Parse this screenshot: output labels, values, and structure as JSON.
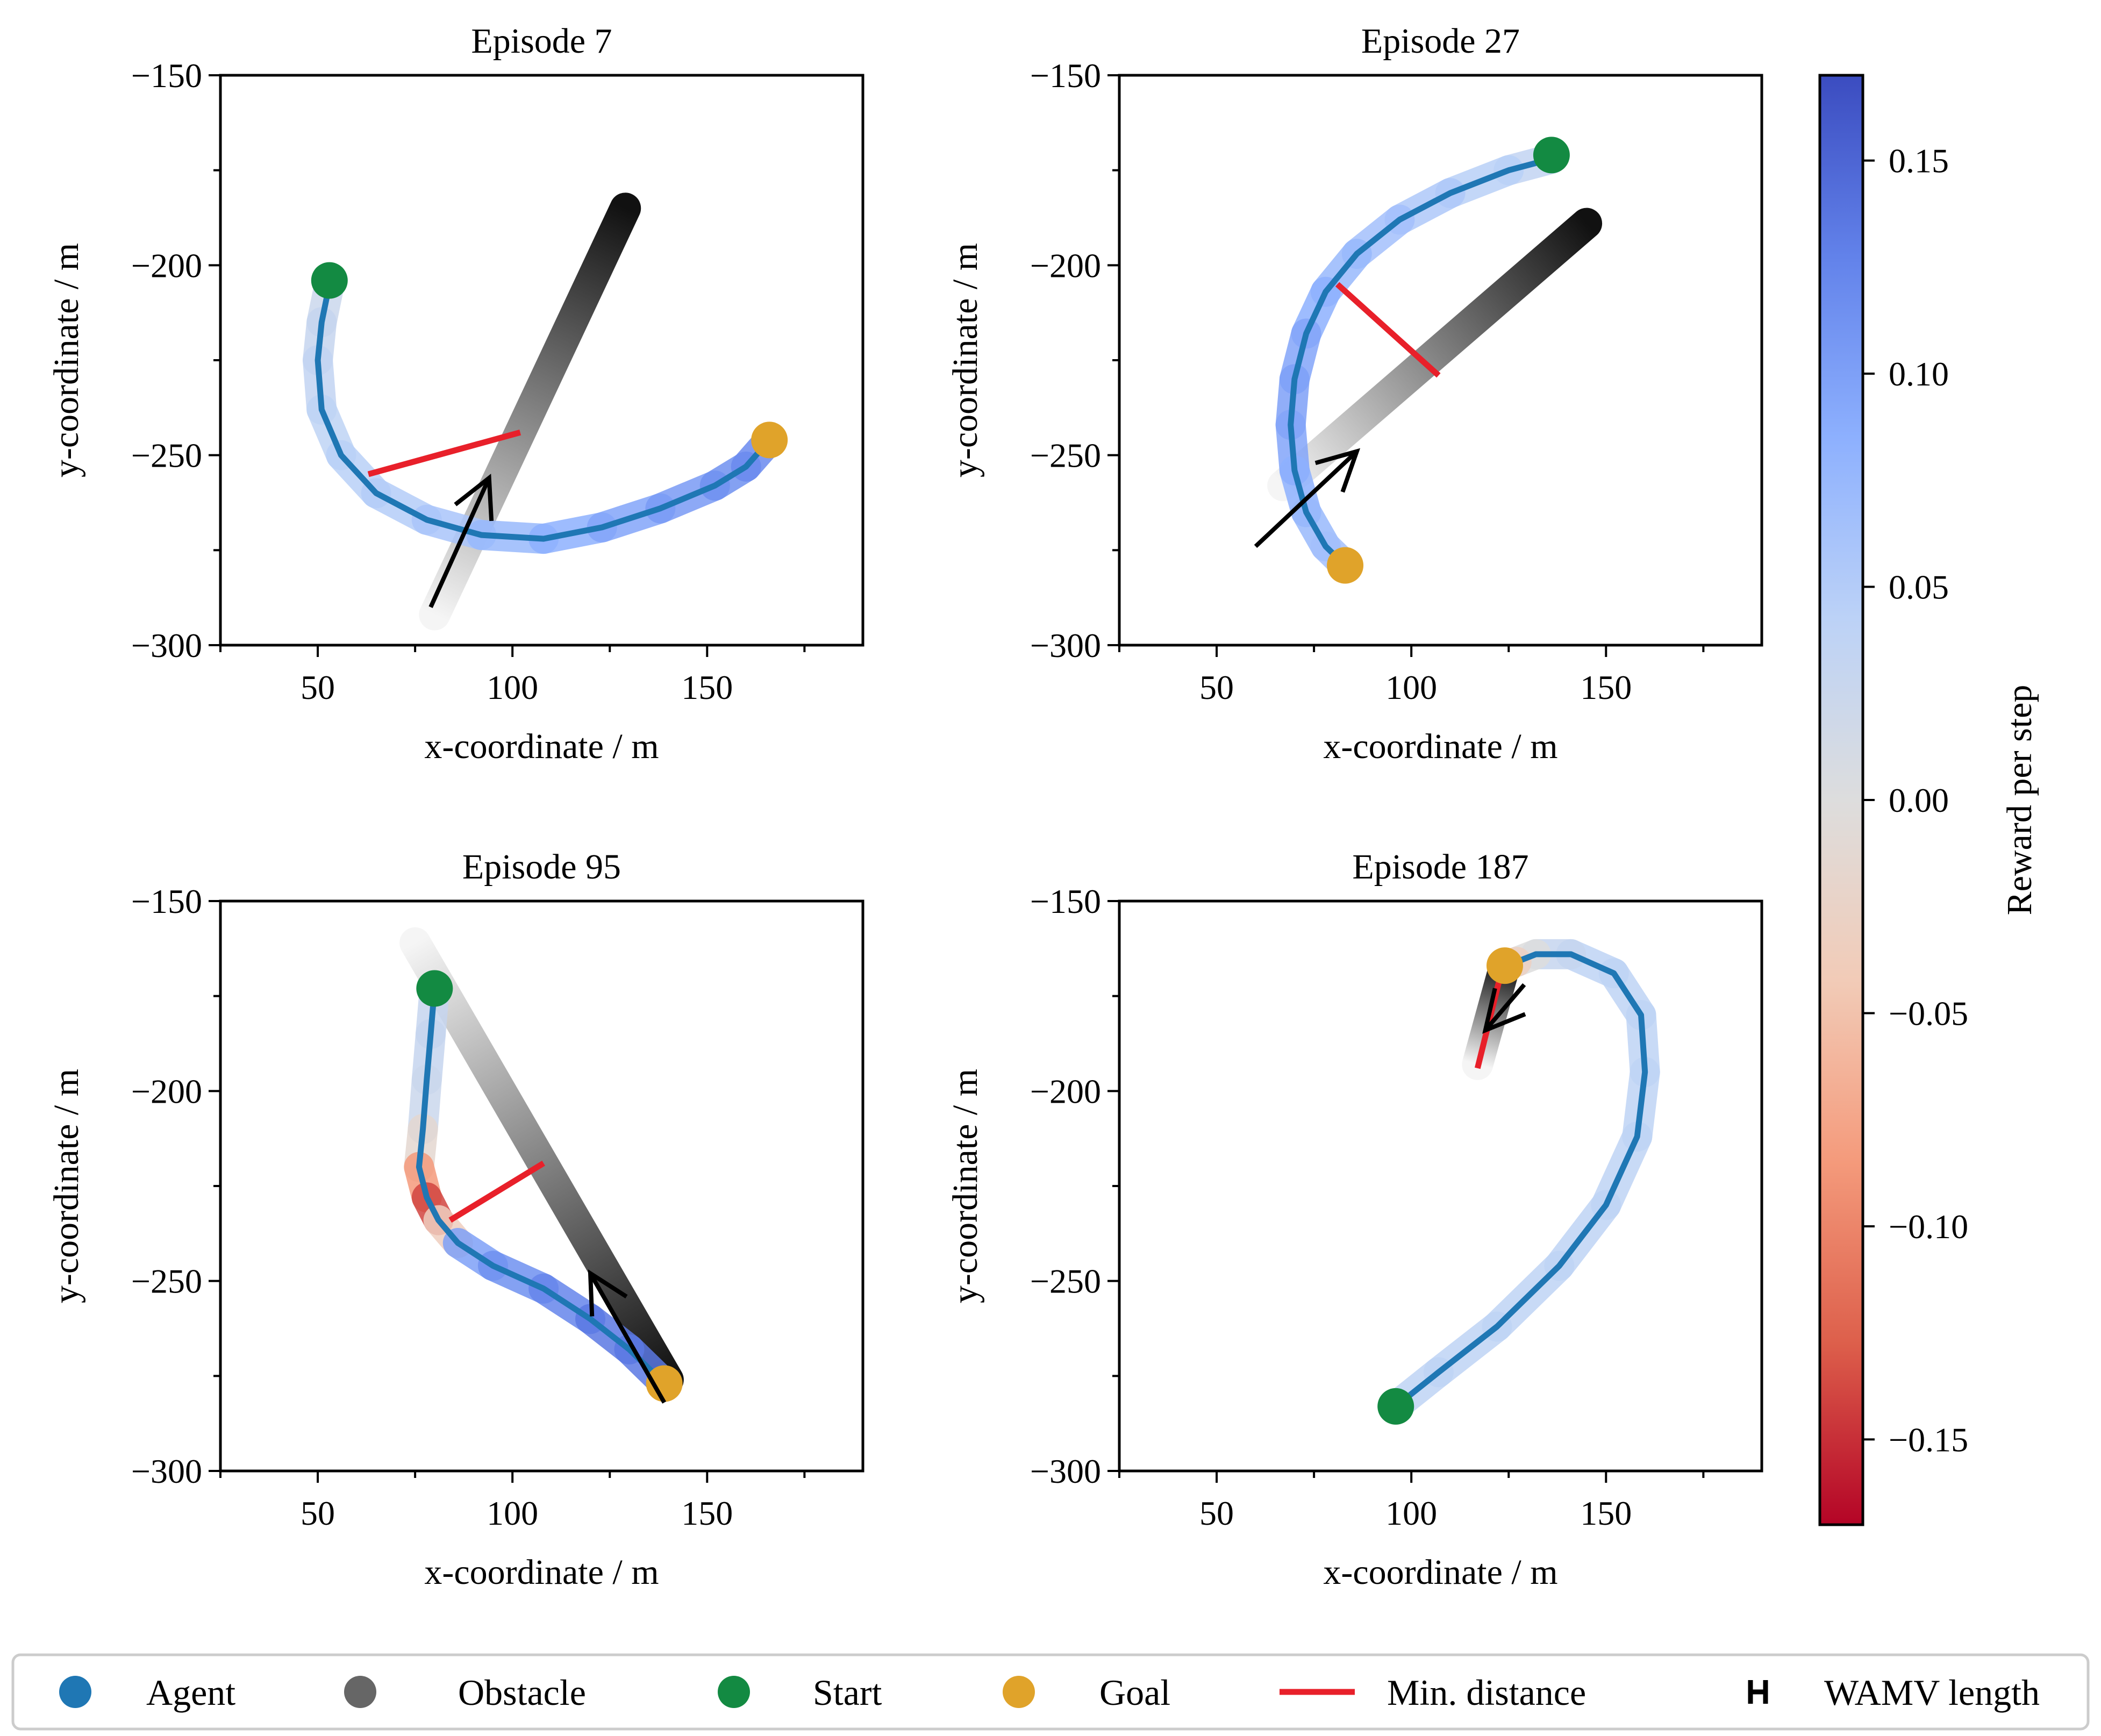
{
  "chart_data": {
    "type": "line",
    "description_axes": {
      "xlabel": "x-coordinate / m",
      "ylabel": "y-coordinate / m",
      "xlim": [
        25,
        190
      ],
      "ylim": [
        -300,
        -150
      ],
      "xticks": [
        50,
        100,
        150
      ],
      "yticks": [
        -150,
        -200,
        -250,
        -300
      ]
    },
    "colorbar": {
      "label": "Reward per step",
      "range": [
        -0.17,
        0.17
      ],
      "ticks": [
        0.15,
        0.1,
        0.05,
        0.0,
        -0.05,
        -0.1,
        -0.15
      ],
      "tick_labels": [
        "0.15",
        "0.10",
        "0.05",
        "0.00",
        "−0.05",
        "−0.10",
        "−0.15"
      ],
      "colormap": [
        "#b40426",
        "#dd5f4b",
        "#f49a7b",
        "#f2cbb7",
        "#dddddd",
        "#bcd2f7",
        "#8db0fe",
        "#6282ea",
        "#3b4cc0"
      ]
    },
    "panels": [
      {
        "title": "Episode 7",
        "start": [
          53,
          -204
        ],
        "goal": [
          166,
          -246
        ],
        "obstacle": {
          "from": [
            80,
            -292
          ],
          "to": [
            129,
            -185
          ]
        },
        "min_distance": {
          "from": [
            63,
            -255
          ],
          "to": [
            102,
            -244
          ]
        },
        "arrow": {
          "from": [
            79,
            -290
          ],
          "to": [
            94,
            -256
          ]
        },
        "path": [
          {
            "x": 53,
            "y": -205,
            "r": 0.02
          },
          {
            "x": 51,
            "y": -215,
            "r": 0.03
          },
          {
            "x": 50,
            "y": -225,
            "r": 0.03
          },
          {
            "x": 51,
            "y": -238,
            "r": 0.04
          },
          {
            "x": 56,
            "y": -250,
            "r": 0.04
          },
          {
            "x": 65,
            "y": -260,
            "r": 0.05
          },
          {
            "x": 78,
            "y": -267,
            "r": 0.05
          },
          {
            "x": 92,
            "y": -271,
            "r": 0.07
          },
          {
            "x": 108,
            "y": -272,
            "r": 0.08
          },
          {
            "x": 123,
            "y": -269,
            "r": 0.09
          },
          {
            "x": 138,
            "y": -264,
            "r": 0.1
          },
          {
            "x": 152,
            "y": -258,
            "r": 0.11
          },
          {
            "x": 160,
            "y": -253,
            "r": 0.12
          },
          {
            "x": 166,
            "y": -246,
            "r": 0.12
          }
        ]
      },
      {
        "title": "Episode 27",
        "start": [
          136,
          -171
        ],
        "goal": [
          83,
          -279
        ],
        "obstacle": {
          "from": [
            67,
            -258
          ],
          "to": [
            145,
            -189
          ]
        },
        "min_distance": {
          "from": [
            81,
            -205
          ],
          "to": [
            107,
            -229
          ]
        },
        "arrow": {
          "from": [
            60,
            -274
          ],
          "to": [
            86,
            -249
          ]
        },
        "path": [
          {
            "x": 136,
            "y": -172,
            "r": 0.03
          },
          {
            "x": 125,
            "y": -175,
            "r": 0.04
          },
          {
            "x": 110,
            "y": -181,
            "r": 0.05
          },
          {
            "x": 97,
            "y": -188,
            "r": 0.06
          },
          {
            "x": 86,
            "y": -197,
            "r": 0.07
          },
          {
            "x": 78,
            "y": -207,
            "r": 0.08
          },
          {
            "x": 73,
            "y": -218,
            "r": 0.09
          },
          {
            "x": 70,
            "y": -230,
            "r": 0.1
          },
          {
            "x": 69,
            "y": -242,
            "r": 0.1
          },
          {
            "x": 70,
            "y": -254,
            "r": 0.09
          },
          {
            "x": 73,
            "y": -265,
            "r": 0.08
          },
          {
            "x": 78,
            "y": -274,
            "r": 0.07
          },
          {
            "x": 83,
            "y": -279,
            "r": 0.06
          }
        ]
      },
      {
        "title": "Episode 95",
        "start": [
          80,
          -173
        ],
        "goal": [
          139,
          -277
        ],
        "obstacle": {
          "from": [
            75,
            -161
          ],
          "to": [
            140,
            -276
          ]
        },
        "min_distance": {
          "from": [
            84,
            -234
          ],
          "to": [
            108,
            -219
          ]
        },
        "arrow": {
          "from": [
            139,
            -282
          ],
          "to": [
            120,
            -248
          ]
        },
        "path": [
          {
            "x": 80,
            "y": -173,
            "r": 0.03
          },
          {
            "x": 79,
            "y": -185,
            "r": 0.03
          },
          {
            "x": 78,
            "y": -197,
            "r": 0.03
          },
          {
            "x": 77,
            "y": -210,
            "r": 0.02
          },
          {
            "x": 76,
            "y": -220,
            "r": -0.05
          },
          {
            "x": 78,
            "y": -228,
            "r": -0.12
          },
          {
            "x": 81,
            "y": -234,
            "r": -0.16
          },
          {
            "x": 86,
            "y": -240,
            "r": 0.09
          },
          {
            "x": 95,
            "y": -246,
            "r": 0.11
          },
          {
            "x": 108,
            "y": -252,
            "r": 0.12
          },
          {
            "x": 120,
            "y": -260,
            "r": 0.13
          },
          {
            "x": 130,
            "y": -268,
            "r": 0.14
          },
          {
            "x": 139,
            "y": -277,
            "r": 0.13
          }
        ]
      },
      {
        "title": "Episode 187",
        "start": [
          96,
          -283
        ],
        "goal": [
          124,
          -167
        ],
        "obstacle": {
          "from": [
            117,
            -193
          ],
          "to": [
            124,
            -167
          ]
        },
        "min_distance": {
          "from": [
            117,
            -194
          ],
          "to": [
            124,
            -165
          ]
        },
        "arrow": {
          "from": [
            129,
            -172
          ],
          "to": [
            119,
            -184
          ]
        },
        "path": [
          {
            "x": 96,
            "y": -283,
            "r": 0.04
          },
          {
            "x": 107,
            "y": -274,
            "r": 0.04
          },
          {
            "x": 122,
            "y": -262,
            "r": 0.04
          },
          {
            "x": 138,
            "y": -246,
            "r": 0.04
          },
          {
            "x": 150,
            "y": -230,
            "r": 0.04
          },
          {
            "x": 158,
            "y": -212,
            "r": 0.04
          },
          {
            "x": 160,
            "y": -195,
            "r": 0.04
          },
          {
            "x": 159,
            "y": -180,
            "r": 0.04
          },
          {
            "x": 152,
            "y": -169,
            "r": 0.04
          },
          {
            "x": 141,
            "y": -164,
            "r": 0.04
          },
          {
            "x": 132,
            "y": -164,
            "r": 0.02
          },
          {
            "x": 127,
            "y": -166,
            "r": -0.02
          },
          {
            "x": 124,
            "y": -167,
            "r": -0.04
          }
        ]
      }
    ],
    "legend": [
      {
        "label": "Agent",
        "marker": "circle",
        "color": "#1f77b4"
      },
      {
        "label": "Obstacle",
        "marker": "circle",
        "color": "#666666"
      },
      {
        "label": "Start",
        "marker": "circle",
        "color": "#138a42"
      },
      {
        "label": "Goal",
        "marker": "circle",
        "color": "#e0a32a"
      },
      {
        "label": "Min. distance",
        "marker": "line",
        "color": "#e8202a"
      },
      {
        "label": "WAMV length",
        "marker": "H",
        "color": "#000000"
      }
    ],
    "colors": {
      "agent_line": "#1f77b4",
      "start": "#138a42",
      "goal": "#e0a32a",
      "min_distance": "#e8202a",
      "obstacle_dark": "#111111",
      "obstacle_light": "#f5f5f5"
    }
  }
}
